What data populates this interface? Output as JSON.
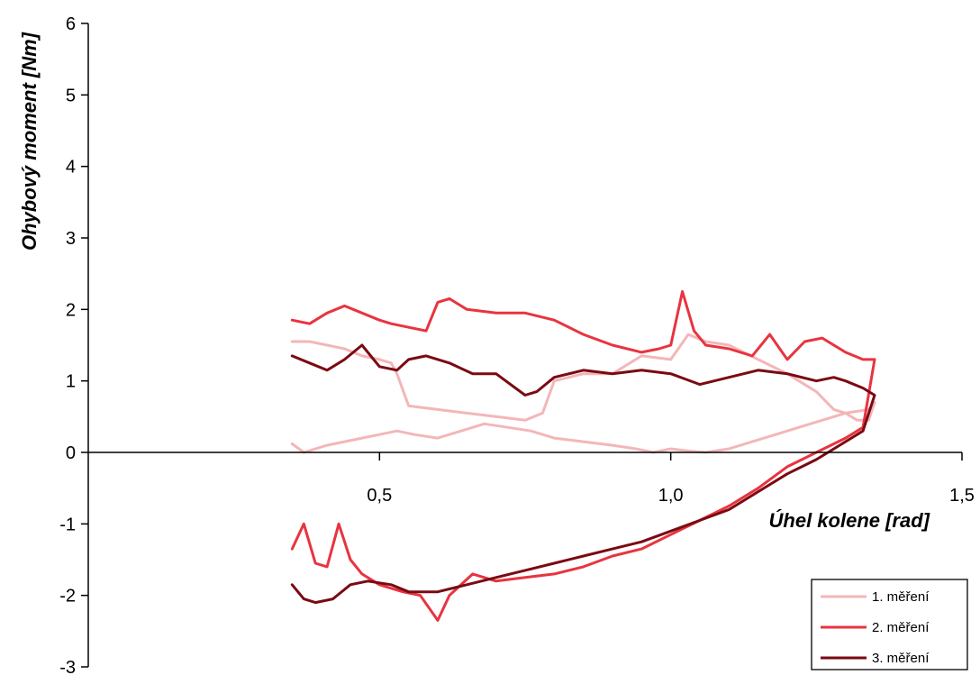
{
  "chart_data": {
    "type": "line",
    "xlabel": "Úhel kolene [rad]",
    "ylabel": "Ohybový moment [Nm]",
    "xlim": [
      0,
      1.5
    ],
    "ylim": [
      -3,
      6
    ],
    "x_ticks": [
      0.5,
      1.0,
      1.5
    ],
    "x_tick_labels": [
      "0,5",
      "1,0",
      "1,5"
    ],
    "y_ticks": [
      -3,
      -2,
      -1,
      0,
      1,
      2,
      3,
      4,
      5,
      6
    ],
    "y_tick_labels": [
      "-3",
      "-2",
      "-1",
      "0",
      "1",
      "2",
      "3",
      "4",
      "5",
      "6"
    ],
    "grid": false,
    "legend_position": "bottom-right",
    "series": [
      {
        "name": "1. měření",
        "color": "#f4b6b8",
        "x": [
          0.35,
          0.38,
          0.41,
          0.44,
          0.47,
          0.5,
          0.52,
          0.53,
          0.55,
          0.6,
          0.65,
          0.7,
          0.75,
          0.78,
          0.8,
          0.85,
          0.9,
          0.95,
          1.0,
          1.03,
          1.06,
          1.1,
          1.15,
          1.2,
          1.25,
          1.28,
          1.3,
          1.32,
          1.34,
          1.35,
          1.34,
          1.3,
          1.26,
          1.22,
          1.18,
          1.14,
          1.1,
          1.06,
          1.03,
          1.0,
          0.97,
          0.94,
          0.9,
          0.85,
          0.8,
          0.76,
          0.72,
          0.68,
          0.64,
          0.6,
          0.56,
          0.53,
          0.5,
          0.47,
          0.44,
          0.41,
          0.39,
          0.37,
          0.35
        ],
        "y": [
          1.55,
          1.55,
          1.5,
          1.45,
          1.35,
          1.3,
          1.25,
          1.1,
          0.65,
          0.6,
          0.55,
          0.5,
          0.45,
          0.55,
          1.0,
          1.1,
          1.1,
          1.35,
          1.3,
          1.65,
          1.55,
          1.5,
          1.3,
          1.1,
          0.85,
          0.6,
          0.55,
          0.45,
          0.45,
          0.7,
          0.6,
          0.55,
          0.45,
          0.35,
          0.25,
          0.15,
          0.05,
          0.0,
          0.02,
          0.05,
          0.0,
          0.05,
          0.1,
          0.15,
          0.2,
          0.3,
          0.35,
          0.4,
          0.3,
          0.2,
          0.25,
          0.3,
          0.25,
          0.2,
          0.15,
          0.1,
          0.05,
          0.0,
          0.12
        ]
      },
      {
        "name": "2. měření",
        "color": "#e8343f",
        "x": [
          0.35,
          0.38,
          0.41,
          0.44,
          0.47,
          0.5,
          0.52,
          0.55,
          0.58,
          0.6,
          0.62,
          0.65,
          0.7,
          0.75,
          0.8,
          0.85,
          0.9,
          0.95,
          0.98,
          1.0,
          1.02,
          1.04,
          1.06,
          1.1,
          1.14,
          1.17,
          1.2,
          1.23,
          1.26,
          1.3,
          1.33,
          1.35,
          1.33,
          1.3,
          1.25,
          1.2,
          1.15,
          1.1,
          1.05,
          1.0,
          0.95,
          0.9,
          0.85,
          0.8,
          0.75,
          0.7,
          0.66,
          0.62,
          0.6,
          0.57,
          0.54,
          0.5,
          0.47,
          0.45,
          0.43,
          0.41,
          0.39,
          0.37,
          0.35
        ],
        "y": [
          1.85,
          1.8,
          1.95,
          2.05,
          1.95,
          1.85,
          1.8,
          1.75,
          1.7,
          2.1,
          2.15,
          2.0,
          1.95,
          1.95,
          1.85,
          1.65,
          1.5,
          1.4,
          1.45,
          1.5,
          2.25,
          1.7,
          1.5,
          1.45,
          1.35,
          1.65,
          1.3,
          1.55,
          1.6,
          1.4,
          1.3,
          1.3,
          0.35,
          0.2,
          0.0,
          -0.2,
          -0.5,
          -0.75,
          -0.95,
          -1.15,
          -1.35,
          -1.45,
          -1.6,
          -1.7,
          -1.75,
          -1.8,
          -1.7,
          -2.0,
          -2.35,
          -2.0,
          -1.95,
          -1.85,
          -1.7,
          -1.5,
          -1.0,
          -1.6,
          -1.55,
          -1.0,
          -1.35
        ]
      },
      {
        "name": "3. měření",
        "color": "#7a0a12",
        "x": [
          0.35,
          0.38,
          0.41,
          0.44,
          0.47,
          0.5,
          0.53,
          0.55,
          0.58,
          0.62,
          0.66,
          0.7,
          0.75,
          0.77,
          0.8,
          0.85,
          0.9,
          0.95,
          1.0,
          1.05,
          1.1,
          1.15,
          1.2,
          1.25,
          1.28,
          1.3,
          1.33,
          1.35,
          1.33,
          1.3,
          1.25,
          1.2,
          1.15,
          1.1,
          1.05,
          1.0,
          0.95,
          0.9,
          0.85,
          0.8,
          0.75,
          0.7,
          0.65,
          0.6,
          0.55,
          0.52,
          0.48,
          0.45,
          0.42,
          0.39,
          0.37,
          0.35
        ],
        "y": [
          1.35,
          1.25,
          1.15,
          1.3,
          1.5,
          1.2,
          1.15,
          1.3,
          1.35,
          1.25,
          1.1,
          1.1,
          0.8,
          0.85,
          1.05,
          1.15,
          1.1,
          1.15,
          1.1,
          0.95,
          1.05,
          1.15,
          1.1,
          1.0,
          1.05,
          1.0,
          0.9,
          0.8,
          0.3,
          0.15,
          -0.1,
          -0.3,
          -0.55,
          -0.8,
          -0.95,
          -1.1,
          -1.25,
          -1.35,
          -1.45,
          -1.55,
          -1.65,
          -1.75,
          -1.85,
          -1.95,
          -1.95,
          -1.85,
          -1.8,
          -1.85,
          -2.05,
          -2.1,
          -2.05,
          -1.85
        ]
      }
    ]
  }
}
